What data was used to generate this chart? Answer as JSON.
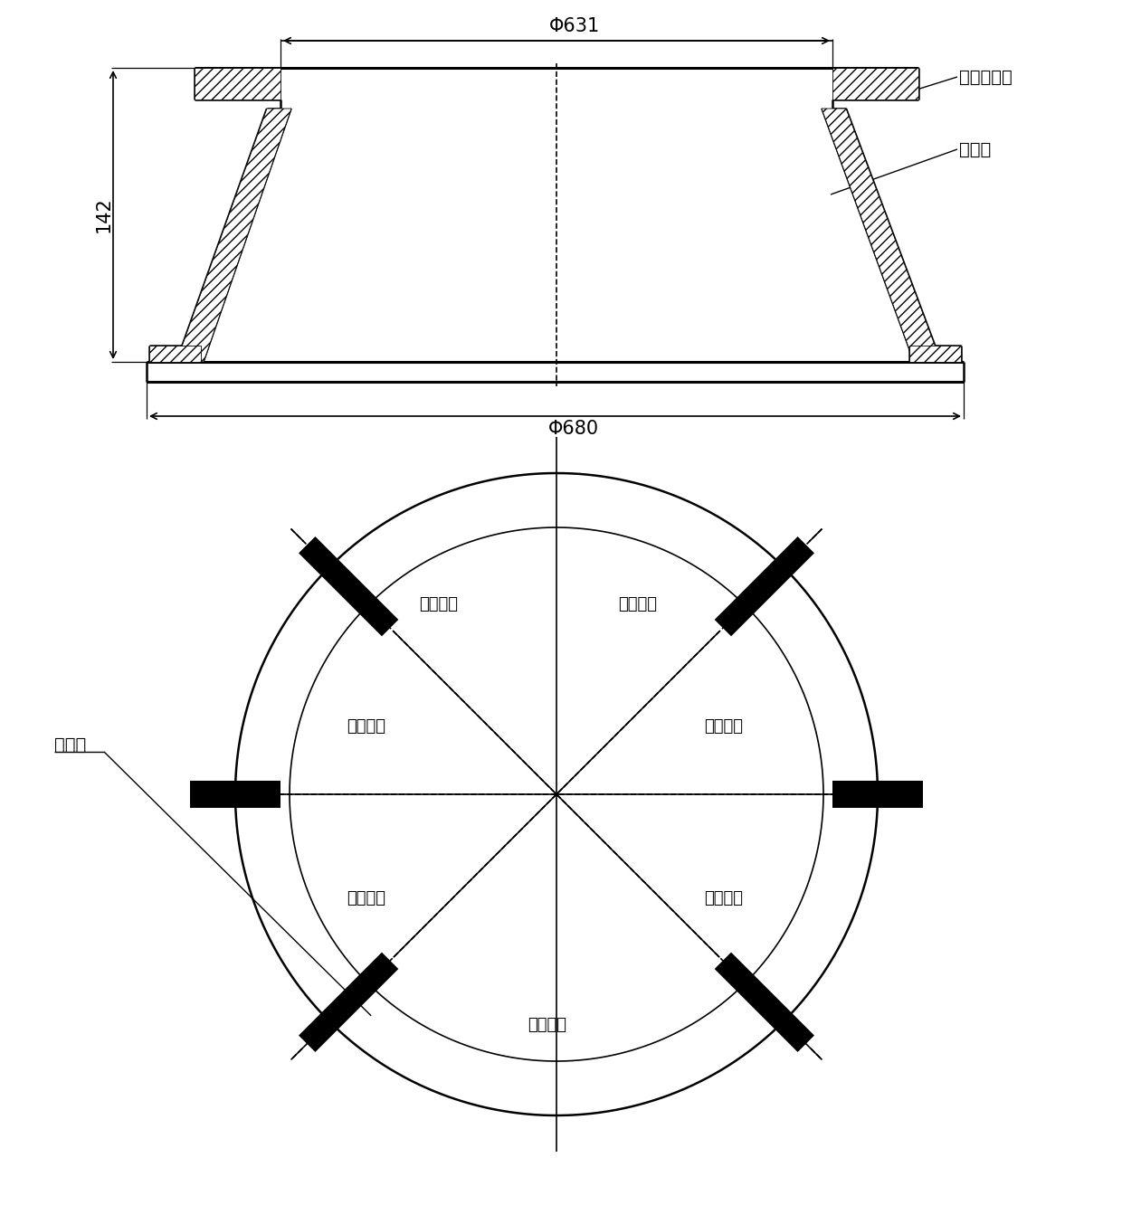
{
  "bg_color": "#ffffff",
  "line_color": "#000000",
  "label_631": "Φ631",
  "label_680": "Φ680",
  "label_142": "142",
  "label_annborder": "安装边外圆",
  "label_outer": "外型面",
  "label_jiagin": "加强筋",
  "label_region": "加工区域",
  "font_size_dim": 15,
  "font_size_label": 14,
  "font_size_region": 13
}
